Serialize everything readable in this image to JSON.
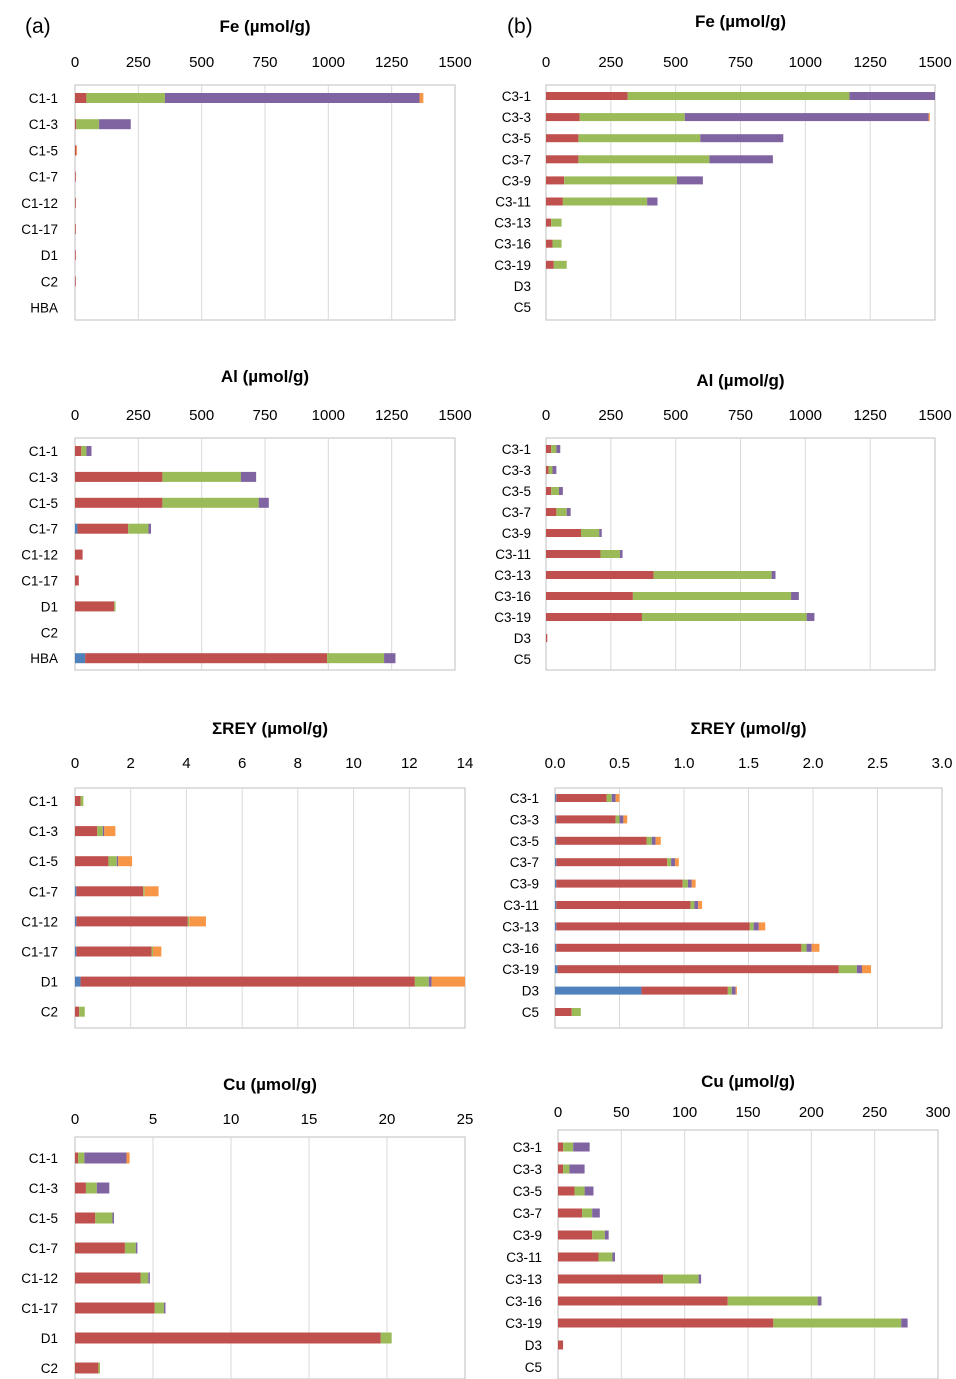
{
  "panel_labels": [
    "(a)",
    "(b)"
  ],
  "colors": [
    "#4f81bd",
    "#c0504d",
    "#9bbb59",
    "#8064a2",
    "#f79646"
  ],
  "chart_data": [
    {
      "type": "bar",
      "stacked": true,
      "orientation": "horizontal",
      "title": "Fe (µmol/g)",
      "xlim": [
        0,
        1500
      ],
      "ticks": [
        "0",
        "250",
        "500",
        "750",
        "1000",
        "1250",
        "1500"
      ],
      "categories": [
        "C1-1",
        "C1-3",
        "C1-5",
        "C1-7",
        "C1-12",
        "C1-17",
        "D1",
        "C2",
        "HBA"
      ],
      "series": [
        {
          "values": [
            0,
            0,
            0,
            0,
            0,
            0,
            0,
            0,
            0
          ]
        },
        {
          "values": [
            45,
            5,
            5,
            1,
            1,
            1,
            2,
            3,
            0
          ]
        },
        {
          "values": [
            310,
            90,
            0,
            0,
            0,
            0,
            0,
            0,
            0
          ]
        },
        {
          "values": [
            1005,
            125,
            0,
            0,
            0,
            0,
            0,
            0,
            0
          ]
        },
        {
          "values": [
            15,
            0,
            3,
            0,
            0,
            0,
            0,
            0,
            0
          ]
        }
      ]
    },
    {
      "type": "bar",
      "stacked": true,
      "orientation": "horizontal",
      "title": "Fe (µmol/g)",
      "xlim": [
        0,
        1500
      ],
      "ticks": [
        "0",
        "250",
        "500",
        "750",
        "1000",
        "1250",
        "1500"
      ],
      "categories": [
        "C3-1",
        "C3-3",
        "C3-5",
        "C3-7",
        "C3-9",
        "C3-11",
        "C3-13",
        "C3-16",
        "C3-19",
        "D3",
        "C5"
      ],
      "series": [
        {
          "values": [
            0,
            0,
            0,
            0,
            0,
            0,
            0,
            0,
            0,
            0,
            0
          ]
        },
        {
          "values": [
            315,
            130,
            125,
            125,
            70,
            65,
            20,
            25,
            30,
            0,
            0
          ]
        },
        {
          "values": [
            855,
            405,
            470,
            505,
            435,
            325,
            40,
            35,
            50,
            0,
            0
          ]
        },
        {
          "values": [
            330,
            940,
            320,
            245,
            100,
            40,
            0,
            0,
            0,
            0,
            0
          ]
        },
        {
          "values": [
            0,
            5,
            0,
            0,
            0,
            0,
            0,
            0,
            0,
            0,
            0
          ]
        }
      ]
    },
    {
      "type": "bar",
      "stacked": true,
      "orientation": "horizontal",
      "title": "Al (µmol/g)",
      "xlim": [
        0,
        1500
      ],
      "ticks": [
        "0",
        "250",
        "500",
        "750",
        "1000",
        "1250",
        "1500"
      ],
      "categories": [
        "C1-1",
        "C1-3",
        "C1-5",
        "C1-7",
        "C1-12",
        "C1-17",
        "D1",
        "C2",
        "HBA"
      ],
      "series": [
        {
          "values": [
            0,
            0,
            0,
            10,
            0,
            0,
            0,
            0,
            40
          ]
        },
        {
          "values": [
            25,
            345,
            345,
            200,
            30,
            15,
            155,
            0,
            955
          ]
        },
        {
          "values": [
            20,
            310,
            380,
            80,
            0,
            0,
            5,
            0,
            225
          ]
        },
        {
          "values": [
            20,
            60,
            40,
            10,
            0,
            0,
            0,
            0,
            45
          ]
        },
        {
          "values": [
            0,
            0,
            0,
            0,
            0,
            0,
            0,
            0,
            0
          ]
        }
      ]
    },
    {
      "type": "bar",
      "stacked": true,
      "orientation": "horizontal",
      "title": "Al (µmol/g)",
      "xlim": [
        0,
        1500
      ],
      "ticks": [
        "0",
        "250",
        "500",
        "750",
        "1000",
        "1250",
        "1500"
      ],
      "categories": [
        "C3-1",
        "C3-3",
        "C3-5",
        "C3-7",
        "C3-9",
        "C3-11",
        "C3-13",
        "C3-16",
        "C3-19",
        "D3",
        "C5"
      ],
      "series": [
        {
          "values": [
            0,
            0,
            0,
            0,
            0,
            0,
            0,
            0,
            0,
            0,
            0
          ]
        },
        {
          "values": [
            20,
            10,
            20,
            40,
            135,
            210,
            415,
            335,
            370,
            5,
            0
          ]
        },
        {
          "values": [
            20,
            15,
            30,
            40,
            70,
            75,
            455,
            610,
            635,
            0,
            0
          ]
        },
        {
          "values": [
            15,
            15,
            15,
            15,
            10,
            10,
            15,
            30,
            30,
            0,
            0
          ]
        },
        {
          "values": [
            0,
            0,
            0,
            0,
            0,
            0,
            0,
            0,
            0,
            0,
            0
          ]
        }
      ]
    },
    {
      "type": "bar",
      "stacked": true,
      "orientation": "horizontal",
      "title": "ΣREY (µmol/g)",
      "xlim": [
        0,
        14
      ],
      "ticks": [
        "0",
        "2",
        "4",
        "6",
        "8",
        "10",
        "12",
        "14"
      ],
      "categories": [
        "C1-1",
        "C1-3",
        "C1-5",
        "C1-7",
        "C1-12",
        "C1-17",
        "D1",
        "C2"
      ],
      "series": [
        {
          "values": [
            0,
            0,
            0,
            0.05,
            0.05,
            0.05,
            0.2,
            0
          ]
        },
        {
          "values": [
            0.2,
            0.8,
            1.2,
            2.4,
            4.0,
            2.7,
            12.0,
            0.15
          ]
        },
        {
          "values": [
            0.1,
            0.2,
            0.3,
            0.05,
            0.05,
            0.05,
            0.5,
            0.2
          ]
        },
        {
          "values": [
            0,
            0.05,
            0.05,
            0,
            0,
            0,
            0.1,
            0
          ]
        },
        {
          "values": [
            0,
            0.4,
            0.5,
            0.5,
            0.6,
            0.3,
            1.2,
            0
          ]
        }
      ]
    },
    {
      "type": "bar",
      "stacked": true,
      "orientation": "horizontal",
      "title": "ΣREY (µmol/g)",
      "xlim": [
        0,
        3.0
      ],
      "ticks": [
        "0.0",
        "0.5",
        "1.0",
        "1.5",
        "2.0",
        "2.5",
        "3.0"
      ],
      "categories": [
        "C3-1",
        "C3-3",
        "C3-5",
        "C3-7",
        "C3-9",
        "C3-11",
        "C3-13",
        "C3-16",
        "C3-19",
        "D3",
        "C5"
      ],
      "series": [
        {
          "values": [
            0.01,
            0.01,
            0.01,
            0.01,
            0.01,
            0.01,
            0.01,
            0.01,
            0.02,
            0.67,
            0
          ]
        },
        {
          "values": [
            0.39,
            0.46,
            0.7,
            0.86,
            0.98,
            1.04,
            1.5,
            1.9,
            2.18,
            0.67,
            0.13
          ]
        },
        {
          "values": [
            0.04,
            0.03,
            0.04,
            0.03,
            0.04,
            0.03,
            0.03,
            0.04,
            0.14,
            0.03,
            0.07
          ]
        },
        {
          "values": [
            0.03,
            0.03,
            0.03,
            0.03,
            0.03,
            0.03,
            0.04,
            0.04,
            0.04,
            0.03,
            0
          ]
        },
        {
          "values": [
            0.03,
            0.03,
            0.04,
            0.03,
            0.03,
            0.03,
            0.05,
            0.06,
            0.07,
            0.01,
            0
          ]
        }
      ]
    },
    {
      "type": "bar",
      "stacked": true,
      "orientation": "horizontal",
      "title": "Cu (µmol/g)",
      "xlim": [
        0,
        25
      ],
      "ticks": [
        "0",
        "5",
        "10",
        "15",
        "20",
        "25"
      ],
      "categories": [
        "C1-1",
        "C1-3",
        "C1-5",
        "C1-7",
        "C1-12",
        "C1-17",
        "D1",
        "C2"
      ],
      "series": [
        {
          "values": [
            0,
            0,
            0,
            0,
            0,
            0,
            0,
            0
          ]
        },
        {
          "values": [
            0.2,
            0.7,
            1.3,
            3.2,
            4.2,
            5.1,
            19.6,
            1.5
          ]
        },
        {
          "values": [
            0.4,
            0.7,
            1.1,
            0.7,
            0.5,
            0.6,
            0.7,
            0.1
          ]
        },
        {
          "values": [
            2.7,
            0.8,
            0.1,
            0.1,
            0.1,
            0.1,
            0,
            0
          ]
        },
        {
          "values": [
            0.2,
            0,
            0,
            0,
            0,
            0,
            0,
            0
          ]
        }
      ]
    },
    {
      "type": "bar",
      "stacked": true,
      "orientation": "horizontal",
      "title": "Cu (µmol/g)",
      "xlim": [
        0,
        300
      ],
      "ticks": [
        "0",
        "50",
        "100",
        "150",
        "200",
        "250",
        "300"
      ],
      "categories": [
        "C3-1",
        "C3-3",
        "C3-5",
        "C3-7",
        "C3-9",
        "C3-11",
        "C3-13",
        "C3-16",
        "C3-19",
        "D3",
        "C5"
      ],
      "series": [
        {
          "values": [
            0,
            0,
            0,
            0,
            0,
            0,
            0,
            0,
            0,
            0,
            0
          ]
        },
        {
          "values": [
            4,
            4,
            13,
            19,
            27,
            32,
            83,
            134,
            170,
            4,
            0
          ]
        },
        {
          "values": [
            8,
            5,
            8,
            8,
            10,
            11,
            28,
            71,
            101,
            0,
            0
          ]
        },
        {
          "values": [
            13,
            12,
            7,
            6,
            3,
            2,
            2,
            3,
            5,
            0,
            0
          ]
        },
        {
          "values": [
            0,
            0,
            0,
            0,
            0,
            0,
            0,
            0,
            0,
            0,
            0
          ]
        }
      ]
    }
  ]
}
